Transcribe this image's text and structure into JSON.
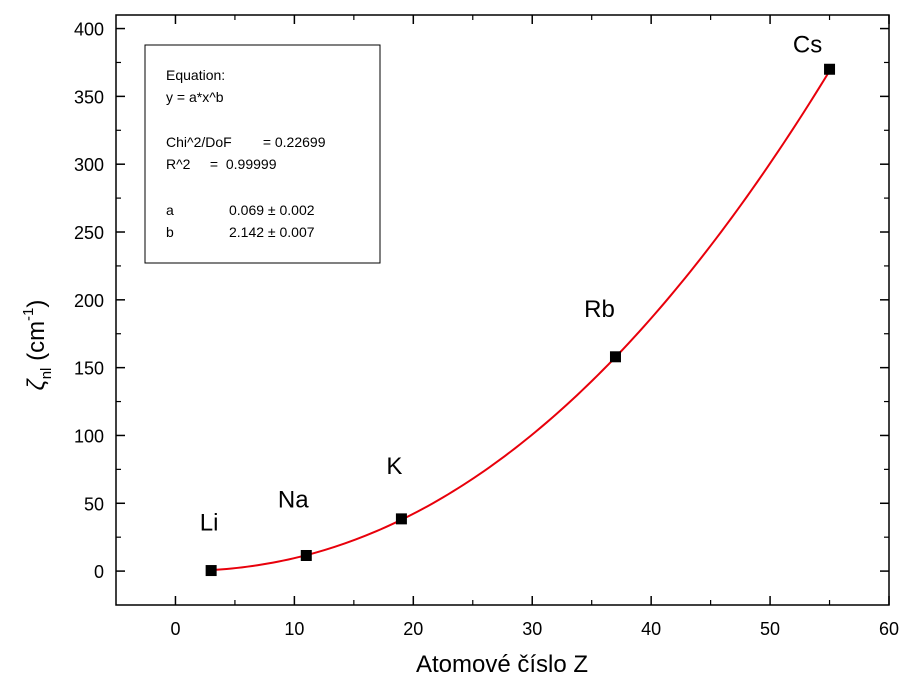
{
  "chart_data": {
    "type": "scatter",
    "xlabel": "Atomové číslo Z",
    "ylabel": {
      "symbol": "ζ",
      "subscript": "nl",
      "unit_open": " (cm",
      "unit_sup": "-1",
      "unit_close": ")"
    },
    "xlim": [
      -5,
      60
    ],
    "ylim": [
      -25,
      410
    ],
    "xticks": [
      0,
      10,
      20,
      30,
      40,
      50,
      60
    ],
    "yticks": [
      0,
      50,
      100,
      150,
      200,
      250,
      300,
      350,
      400
    ],
    "points": [
      {
        "x": 3,
        "y": 0.4,
        "label": "Li"
      },
      {
        "x": 11,
        "y": 11.5,
        "label": "Na"
      },
      {
        "x": 19,
        "y": 38.5,
        "label": "K"
      },
      {
        "x": 37,
        "y": 158,
        "label": "Rb"
      },
      {
        "x": 55,
        "y": 370,
        "label": "Cs"
      }
    ],
    "fit": {
      "a": 0.069,
      "b": 2.142,
      "x_from": 3,
      "x_to": 55,
      "color": "#e8000b"
    },
    "marker_color": "#000000",
    "grid": false
  },
  "fit_box": {
    "lines": [
      "Equation:",
      "y = a*x^b",
      "Chi^2/DoF        = 0.22699",
      "R^2     =  0.99999"
    ],
    "params": [
      {
        "name": "a",
        "value": "0.069 ± 0.002"
      },
      {
        "name": "b",
        "value": "2.142 ± 0.007"
      }
    ]
  }
}
